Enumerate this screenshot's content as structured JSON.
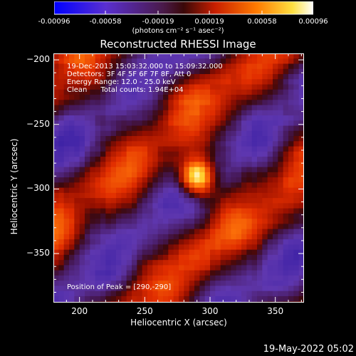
{
  "chart_data": {
    "type": "heatmap",
    "title": "Reconstructed RHESSI Image",
    "xlabel": "Heliocentric X (arcsec)",
    "ylabel": "Heliocentric Y (arcsec)",
    "xlim": [
      180,
      372
    ],
    "ylim": [
      -388,
      -195
    ],
    "x_ticks": [
      "200",
      "250",
      "300",
      "350"
    ],
    "x_tick_values": [
      200,
      250,
      300,
      350
    ],
    "y_ticks": [
      "-200",
      "-250",
      "-300",
      "-350"
    ],
    "y_tick_values": [
      -200,
      -250,
      -300,
      -350
    ],
    "colorbar": {
      "ticks": [
        "-0.00096",
        "-0.00058",
        "-0.00019",
        "0.00019",
        "0.00058",
        "0.00096"
      ],
      "tick_values": [
        -0.00096,
        -0.00058,
        -0.00019,
        0.00019,
        0.00058,
        0.00096
      ],
      "range": [
        -0.00096,
        0.00096
      ],
      "units": "(photons cm⁻² s⁻¹ asec⁻²)",
      "colors": [
        "#0000ff",
        "#6a3bb0",
        "#7a1a2a",
        "#c81e00",
        "#ff7a00",
        "#ffdd30",
        "#ffffff"
      ]
    },
    "annotations": {
      "time": "19-Dec-2013 15:03:32.000 to 15:09:32.000",
      "detectors": "Detectors: 3F 4F 5F 6F 7F 8F, Att 0",
      "energy": "Energy Range: 12.0 - 25.0 keV",
      "clean": "Clean      Total counts: 1.94E+04",
      "peak": "Position of Peak = [290,-290]"
    },
    "peak_position": [
      290,
      -290
    ]
  },
  "footer": {
    "date": "19-May-2022 05:02"
  }
}
